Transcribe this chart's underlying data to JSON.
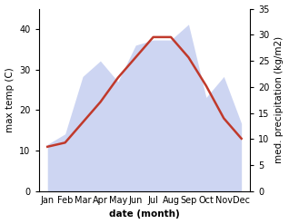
{
  "months": [
    "Jan",
    "Feb",
    "Mar",
    "Apr",
    "May",
    "Jun",
    "Jul",
    "Aug",
    "Sep",
    "Oct",
    "Nov",
    "Dec"
  ],
  "month_indices": [
    1,
    2,
    3,
    4,
    5,
    6,
    7,
    8,
    9,
    10,
    11,
    12
  ],
  "temp": [
    11,
    12,
    17,
    22,
    28,
    33,
    38,
    38,
    33,
    26,
    18,
    13
  ],
  "precip": [
    9,
    11,
    22,
    25,
    21,
    28,
    29,
    29,
    32,
    18,
    22,
    13
  ],
  "temp_color": "#c0392b",
  "precip_fill_color": "#c5cef0",
  "precip_fill_alpha": 0.85,
  "xlabel": "date (month)",
  "ylabel_left": "max temp (C)",
  "ylabel_right": "med. precipitation (kg/m2)",
  "ylim_left": [
    0,
    45
  ],
  "ylim_right": [
    0,
    35
  ],
  "yticks_left": [
    0,
    10,
    20,
    30,
    40
  ],
  "yticks_right": [
    0,
    5,
    10,
    15,
    20,
    25,
    30,
    35
  ],
  "bg_color": "#ffffff",
  "label_fontsize": 7.5,
  "tick_fontsize": 7,
  "linewidth": 1.8
}
